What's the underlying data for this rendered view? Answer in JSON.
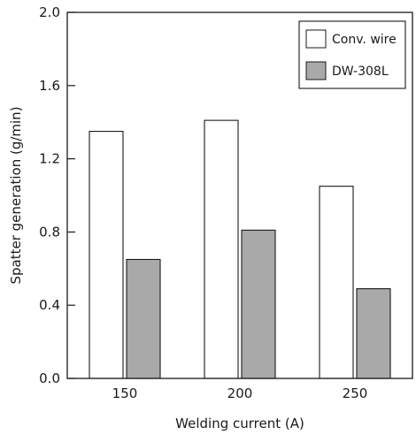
{
  "chart_data": {
    "type": "bar",
    "categories": [
      "150",
      "200",
      "250"
    ],
    "series": [
      {
        "name": "Conv. wire",
        "values": [
          1.35,
          1.41,
          1.05
        ],
        "color": "#ffffff"
      },
      {
        "name": "DW-308L",
        "values": [
          0.65,
          0.81,
          0.49
        ],
        "color": "#a9a9a9"
      }
    ],
    "xlabel": "Welding current (A)",
    "ylabel": "Spatter generation (g/min)",
    "ylim": [
      0,
      2.0
    ],
    "yticks": [
      "0.0",
      "0.4",
      "0.8",
      "1.2",
      "1.6",
      "2.0"
    ],
    "grid": false,
    "legend_position": "top-right"
  }
}
